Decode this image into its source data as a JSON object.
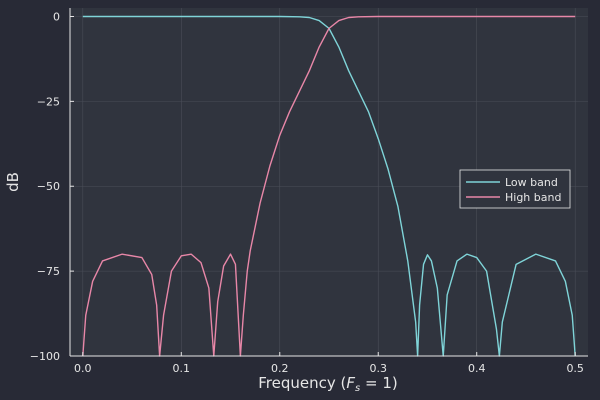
{
  "chart_data": {
    "type": "line",
    "xlabel": "Frequency (F_s = 1)",
    "ylabel": "dB",
    "xlim": [
      -0.013,
      0.513
    ],
    "ylim": [
      -100,
      2.5
    ],
    "x_ticks": [
      0.0,
      0.1,
      0.2,
      0.3,
      0.4,
      0.5
    ],
    "x_tick_labels": [
      "0.0",
      "0.1",
      "0.2",
      "0.3",
      "0.4",
      "0.5"
    ],
    "y_ticks": [
      0,
      -25,
      -50,
      -75,
      -100
    ],
    "y_tick_labels": [
      "0",
      "−25",
      "−50",
      "−75",
      "−100"
    ],
    "grid": true,
    "legend_position": "right",
    "colors": {
      "background": "#282a36",
      "plot_background": "#30343e",
      "axis": "#e6e6e6",
      "grid": "#4a4e58"
    },
    "series": [
      {
        "name": "Low band",
        "color": "#7fd4d8",
        "points": [
          [
            0.0,
            0
          ],
          [
            0.05,
            0
          ],
          [
            0.1,
            0
          ],
          [
            0.15,
            0
          ],
          [
            0.2,
            0
          ],
          [
            0.22,
            -0.1
          ],
          [
            0.23,
            -0.3
          ],
          [
            0.24,
            -1.2
          ],
          [
            0.25,
            -3.5
          ],
          [
            0.26,
            -9
          ],
          [
            0.27,
            -16
          ],
          [
            0.28,
            -22
          ],
          [
            0.29,
            -28
          ],
          [
            0.3,
            -36
          ],
          [
            0.31,
            -45
          ],
          [
            0.32,
            -56
          ],
          [
            0.33,
            -72
          ],
          [
            0.338,
            -90
          ],
          [
            0.34,
            -100
          ],
          [
            0.342,
            -85
          ],
          [
            0.346,
            -73
          ],
          [
            0.35,
            -70.2
          ],
          [
            0.354,
            -72
          ],
          [
            0.36,
            -80
          ],
          [
            0.366,
            -100
          ],
          [
            0.37,
            -82
          ],
          [
            0.38,
            -72
          ],
          [
            0.39,
            -70
          ],
          [
            0.4,
            -71
          ],
          [
            0.41,
            -75
          ],
          [
            0.42,
            -92
          ],
          [
            0.423,
            -100
          ],
          [
            0.426,
            -90
          ],
          [
            0.44,
            -73
          ],
          [
            0.46,
            -70
          ],
          [
            0.48,
            -72
          ],
          [
            0.49,
            -78
          ],
          [
            0.497,
            -88
          ],
          [
            0.5,
            -100
          ]
        ]
      },
      {
        "name": "High band",
        "color": "#e887a8",
        "points": [
          [
            0.0,
            -100
          ],
          [
            0.003,
            -88
          ],
          [
            0.01,
            -78
          ],
          [
            0.02,
            -72
          ],
          [
            0.04,
            -70
          ],
          [
            0.06,
            -71
          ],
          [
            0.07,
            -76
          ],
          [
            0.075,
            -85
          ],
          [
            0.078,
            -100
          ],
          [
            0.082,
            -88
          ],
          [
            0.09,
            -75
          ],
          [
            0.1,
            -70.5
          ],
          [
            0.11,
            -70
          ],
          [
            0.12,
            -72.5
          ],
          [
            0.128,
            -80
          ],
          [
            0.133,
            -100
          ],
          [
            0.137,
            -84
          ],
          [
            0.143,
            -73.5
          ],
          [
            0.15,
            -70
          ],
          [
            0.155,
            -73
          ],
          [
            0.16,
            -100
          ],
          [
            0.163,
            -88
          ],
          [
            0.167,
            -75
          ],
          [
            0.17,
            -69
          ],
          [
            0.18,
            -55
          ],
          [
            0.19,
            -44
          ],
          [
            0.2,
            -35
          ],
          [
            0.21,
            -28
          ],
          [
            0.22,
            -22
          ],
          [
            0.23,
            -16
          ],
          [
            0.24,
            -9
          ],
          [
            0.25,
            -3.5
          ],
          [
            0.26,
            -1.2
          ],
          [
            0.27,
            -0.3
          ],
          [
            0.28,
            -0.1
          ],
          [
            0.3,
            0
          ],
          [
            0.35,
            0
          ],
          [
            0.4,
            0
          ],
          [
            0.45,
            0
          ],
          [
            0.5,
            0
          ]
        ]
      }
    ]
  }
}
